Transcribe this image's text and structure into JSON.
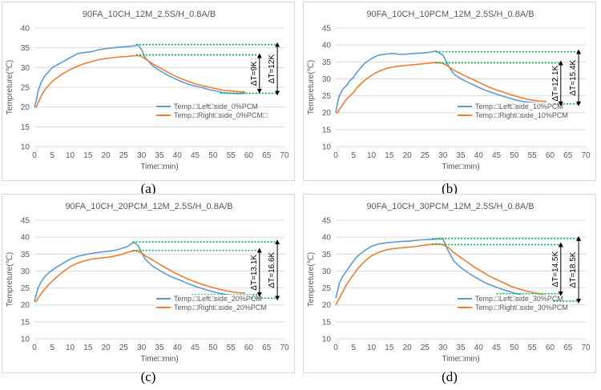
{
  "colors": {
    "blue": "#5b9bd5",
    "orange": "#ed7d31",
    "green": "#00b050",
    "grid": "#d9d9d9",
    "text": "#595959"
  },
  "chart_data": [
    {
      "type": "line",
      "caption": "(a)",
      "title": "90FA_10CH_12M_2.5S/H_0.8A/B",
      "xlabel": "Time□min)",
      "ylabel": "Tempreture(℃)",
      "xlim": [
        0,
        70
      ],
      "ylim": [
        10,
        40
      ],
      "xticks": [
        0,
        5,
        10,
        15,
        20,
        25,
        30,
        35,
        40,
        45,
        50,
        55,
        60,
        65,
        70
      ],
      "yticks": [
        10,
        15,
        20,
        25,
        30,
        35,
        40
      ],
      "grid": true,
      "legend_position": "lower-right",
      "series": [
        {
          "name": "Temp.□Left□side_0%PCM",
          "x": [
            0,
            0.5,
            1,
            2,
            3,
            4,
            5,
            6,
            8,
            10,
            12,
            14,
            16,
            18,
            20,
            22,
            24,
            26,
            28,
            29,
            30,
            31,
            32,
            33,
            35,
            37,
            39,
            41,
            43,
            45,
            47,
            49,
            51,
            53,
            55,
            57,
            59
          ],
          "y": [
            20,
            21.5,
            24,
            26.5,
            28,
            29,
            30,
            30.5,
            31.5,
            32.5,
            33.5,
            33.8,
            34,
            34.5,
            34.8,
            35,
            35.2,
            35.3,
            35.5,
            35.7,
            34.5,
            32.5,
            31.5,
            30.5,
            29.3,
            28.2,
            27.3,
            26.5,
            25.8,
            25.3,
            24.9,
            24.4,
            24,
            23.6,
            23.5,
            23.4,
            23.5
          ]
        },
        {
          "name": "Temp.□Right□side_0%PCM□",
          "x": [
            0,
            0.5,
            1,
            2,
            3,
            4,
            5,
            6,
            8,
            10,
            12,
            14,
            16,
            18,
            20,
            22,
            24,
            26,
            28,
            29,
            30,
            31,
            32,
            33,
            35,
            37,
            39,
            41,
            43,
            45,
            47,
            49,
            51,
            53,
            55,
            57,
            59
          ],
          "y": [
            20,
            20,
            21,
            23,
            24.5,
            25.5,
            26.5,
            27.2,
            28.5,
            29.5,
            30.3,
            31,
            31.5,
            32,
            32.3,
            32.5,
            32.7,
            32.8,
            33,
            33,
            32.8,
            32.2,
            31.6,
            31,
            30,
            29,
            28,
            27.2,
            26.5,
            25.9,
            25.4,
            25,
            24.6,
            24.2,
            24.1,
            23.9,
            23.8
          ]
        }
      ],
      "annotations": [
        {
          "label": "ΔT=9K",
          "from": 33,
          "to": 24,
          "x": 63
        },
        {
          "label": "ΔT=12K",
          "from": 35.8,
          "to": 23.5,
          "x": 68
        }
      ],
      "ref_lines": [
        {
          "y": 35.8,
          "x1": 28.5,
          "x2": 68
        },
        {
          "y": 33.2,
          "x1": 28.5,
          "x2": 62.5
        },
        {
          "y": 23.5,
          "x1": 52,
          "x2": 68
        }
      ]
    },
    {
      "type": "line",
      "caption": "(b)",
      "title": "90FA_10CH_10PCM_12M_2.5S/H_0.8A/B",
      "xlabel": "Time□min)",
      "ylabel": "Tempreture(℃)",
      "xlim": [
        0,
        70
      ],
      "ylim": [
        10,
        45
      ],
      "xticks": [
        0,
        5,
        10,
        15,
        20,
        25,
        30,
        35,
        40,
        45,
        50,
        55,
        60,
        65,
        70
      ],
      "yticks": [
        10,
        15,
        20,
        25,
        30,
        35,
        40,
        45
      ],
      "grid": true,
      "legend_position": "lower-right",
      "series": [
        {
          "name": "Temp.□Left□side_10%PCM",
          "x": [
            0,
            0.5,
            1,
            2,
            3,
            4,
            5,
            6,
            8,
            10,
            12,
            14,
            16,
            18,
            20,
            22,
            24,
            26,
            28,
            30,
            31,
            32,
            33,
            35,
            37,
            39,
            41,
            43,
            45,
            47,
            49,
            51,
            53,
            55,
            57,
            59
          ],
          "y": [
            20,
            23,
            25,
            27,
            28,
            29.5,
            30.5,
            32,
            34.5,
            36,
            37,
            37.3,
            37.5,
            37.2,
            37.3,
            37.5,
            37.6,
            37.8,
            38.2,
            37,
            35,
            33,
            31.5,
            30,
            29,
            28,
            27,
            26.2,
            25.5,
            24.8,
            24.2,
            23.6,
            23.2,
            23,
            22.8,
            22.8
          ]
        },
        {
          "name": "Temp.□Right□side_10%PCM",
          "x": [
            0,
            0.5,
            1,
            2,
            3,
            4,
            5,
            6,
            8,
            10,
            12,
            14,
            16,
            18,
            20,
            22,
            24,
            26,
            28,
            30,
            31,
            32,
            33,
            35,
            37,
            39,
            41,
            43,
            45,
            47,
            49,
            51,
            53,
            55,
            57,
            59
          ],
          "y": [
            20,
            20,
            21,
            22.5,
            24,
            25,
            26,
            27.5,
            29.5,
            31,
            32.2,
            33,
            33.5,
            33.8,
            34,
            34.2,
            34.4,
            34.6,
            34.8,
            34.6,
            34,
            33.3,
            32.6,
            31.5,
            30.5,
            29.5,
            28.5,
            27.5,
            26.7,
            26,
            25.3,
            24.7,
            24.1,
            23.7,
            23.4,
            23.3
          ]
        }
      ],
      "annotations": [
        {
          "label": "ΔT=12.1K",
          "from": 34.7,
          "to": 22.6,
          "x": 63
        },
        {
          "label": "ΔT=15.4K",
          "from": 38,
          "to": 22.6,
          "x": 68
        }
      ],
      "ref_lines": [
        {
          "y": 38,
          "x1": 28,
          "x2": 68
        },
        {
          "y": 34.7,
          "x1": 28,
          "x2": 62.5
        },
        {
          "y": 22.6,
          "x1": 53,
          "x2": 68
        }
      ]
    },
    {
      "type": "line",
      "caption": "(c)",
      "title": "90FA_10CH_20PCM_12M_2.5S/H_0.8A/B",
      "xlabel": "Time□min)",
      "ylabel": "Tempreture(℃)",
      "xlim": [
        0,
        70
      ],
      "ylim": [
        10,
        45
      ],
      "xticks": [
        0,
        5,
        10,
        15,
        20,
        25,
        30,
        35,
        40,
        45,
        50,
        55,
        60,
        65,
        70
      ],
      "yticks": [
        10,
        15,
        20,
        25,
        30,
        35,
        40,
        45
      ],
      "grid": true,
      "legend_position": "lower-right",
      "series": [
        {
          "name": "Temp.□Left□side_20%PCM",
          "x": [
            0,
            0.5,
            1,
            2,
            3,
            4,
            5,
            6,
            8,
            10,
            12,
            14,
            16,
            18,
            20,
            22,
            24,
            26,
            27,
            28,
            29,
            30,
            31,
            33,
            35,
            37,
            39,
            41,
            43,
            45,
            47,
            49,
            51,
            53,
            55,
            57,
            59
          ],
          "y": [
            21,
            23,
            25,
            27,
            28.5,
            29.5,
            30.3,
            31,
            32.3,
            33.5,
            34.3,
            34.8,
            35.2,
            35.5,
            35.8,
            36,
            36.5,
            37.2,
            38,
            38.4,
            37.5,
            35.5,
            33.5,
            31.5,
            30.2,
            29,
            28,
            27.2,
            26.3,
            25.5,
            24.8,
            24.2,
            23.6,
            23.2,
            22.8,
            22.5,
            22.4
          ]
        },
        {
          "name": "Temp.□Right□side_20%PCM",
          "x": [
            0,
            0.5,
            1,
            2,
            3,
            4,
            5,
            6,
            8,
            10,
            12,
            14,
            16,
            18,
            20,
            22,
            24,
            26,
            27,
            28,
            29,
            30,
            31,
            33,
            35,
            37,
            39,
            41,
            43,
            45,
            47,
            49,
            51,
            53,
            55,
            57,
            59
          ],
          "y": [
            21,
            21,
            22,
            23.5,
            24.8,
            26,
            27,
            28,
            29.8,
            31.3,
            32.3,
            33,
            33.5,
            33.8,
            34,
            34.3,
            34.8,
            35.5,
            35.8,
            36,
            35.8,
            35.3,
            34.5,
            33.3,
            32,
            30.8,
            29.6,
            28.6,
            27.6,
            26.8,
            26,
            25.4,
            24.8,
            24.3,
            23.9,
            23.6,
            23.5
          ]
        }
      ],
      "annotations": [
        {
          "label": "ΔT=13.1K",
          "from": 36.1,
          "to": 23,
          "x": 63
        },
        {
          "label": "ΔT=16.6K",
          "from": 38.6,
          "to": 22,
          "x": 68
        }
      ],
      "ref_lines": [
        {
          "y": 38.6,
          "x1": 27.5,
          "x2": 68
        },
        {
          "y": 36.1,
          "x1": 27.5,
          "x2": 62.5
        },
        {
          "y": 23,
          "x1": 44,
          "x2": 62.5
        },
        {
          "y": 22,
          "x1": 50,
          "x2": 68
        }
      ]
    },
    {
      "type": "line",
      "caption": "(d)",
      "title": "90FA_10CH_30PCM_12M_2.5S/H_0.8A/B",
      "xlabel": "Time□min)",
      "ylabel": "Tempreture(℃)",
      "xlim": [
        0,
        70
      ],
      "ylim": [
        10,
        45
      ],
      "xticks": [
        0,
        5,
        10,
        15,
        20,
        25,
        30,
        35,
        40,
        45,
        50,
        55,
        60,
        65,
        70
      ],
      "yticks": [
        10,
        15,
        20,
        25,
        30,
        35,
        40,
        45
      ],
      "grid": true,
      "legend_position": "lower-right",
      "series": [
        {
          "name": "Temp.□Left□side_30%PCM",
          "x": [
            0,
            0.5,
            1,
            2,
            3,
            4,
            5,
            6,
            8,
            10,
            12,
            14,
            16,
            18,
            20,
            22,
            24,
            26,
            28,
            29,
            30,
            31,
            32,
            33,
            35,
            37,
            39,
            41,
            43,
            45,
            47,
            49,
            51,
            53,
            55,
            57,
            59
          ],
          "y": [
            22,
            24,
            26.5,
            28.5,
            30,
            31.5,
            33,
            34.3,
            36,
            37.3,
            38,
            38.3,
            38.5,
            38.7,
            38.8,
            39,
            39.2,
            39.3,
            39.4,
            39.5,
            39.5,
            37,
            35,
            33,
            31,
            29.5,
            28.2,
            27,
            26,
            25.2,
            24.5,
            23.8,
            23.2,
            22.6,
            22.2,
            21.7,
            21
          ]
        },
        {
          "name": "Temp.□Right□side_30%PCM",
          "x": [
            0,
            0.5,
            1,
            2,
            3,
            4,
            5,
            6,
            8,
            10,
            12,
            14,
            16,
            18,
            20,
            22,
            24,
            26,
            28,
            29,
            30,
            31,
            32,
            33,
            35,
            37,
            39,
            41,
            43,
            45,
            47,
            49,
            51,
            53,
            55,
            57,
            59
          ],
          "y": [
            20,
            21,
            22,
            24,
            26,
            27.5,
            29,
            30.5,
            32.8,
            34.5,
            35.5,
            36.2,
            36.6,
            36.8,
            37,
            37.2,
            37.5,
            37.8,
            38,
            38,
            37.8,
            37.3,
            36.5,
            35.5,
            34,
            32.5,
            31,
            29.8,
            28.5,
            27.5,
            26.5,
            25.5,
            24.8,
            24.2,
            23.7,
            23.3,
            22.8
          ]
        }
      ],
      "annotations": [
        {
          "label": "ΔT=14.5K",
          "from": 37.8,
          "to": 23.3,
          "x": 63
        },
        {
          "label": "ΔT=18.5K",
          "from": 39.6,
          "to": 21.1,
          "x": 68
        }
      ],
      "ref_lines": [
        {
          "y": 39.6,
          "x1": 27,
          "x2": 68
        },
        {
          "y": 37.8,
          "x1": 27,
          "x2": 62.5
        },
        {
          "y": 23.3,
          "x1": 45,
          "x2": 62.5
        },
        {
          "y": 21.1,
          "x1": 51,
          "x2": 68
        }
      ]
    }
  ]
}
